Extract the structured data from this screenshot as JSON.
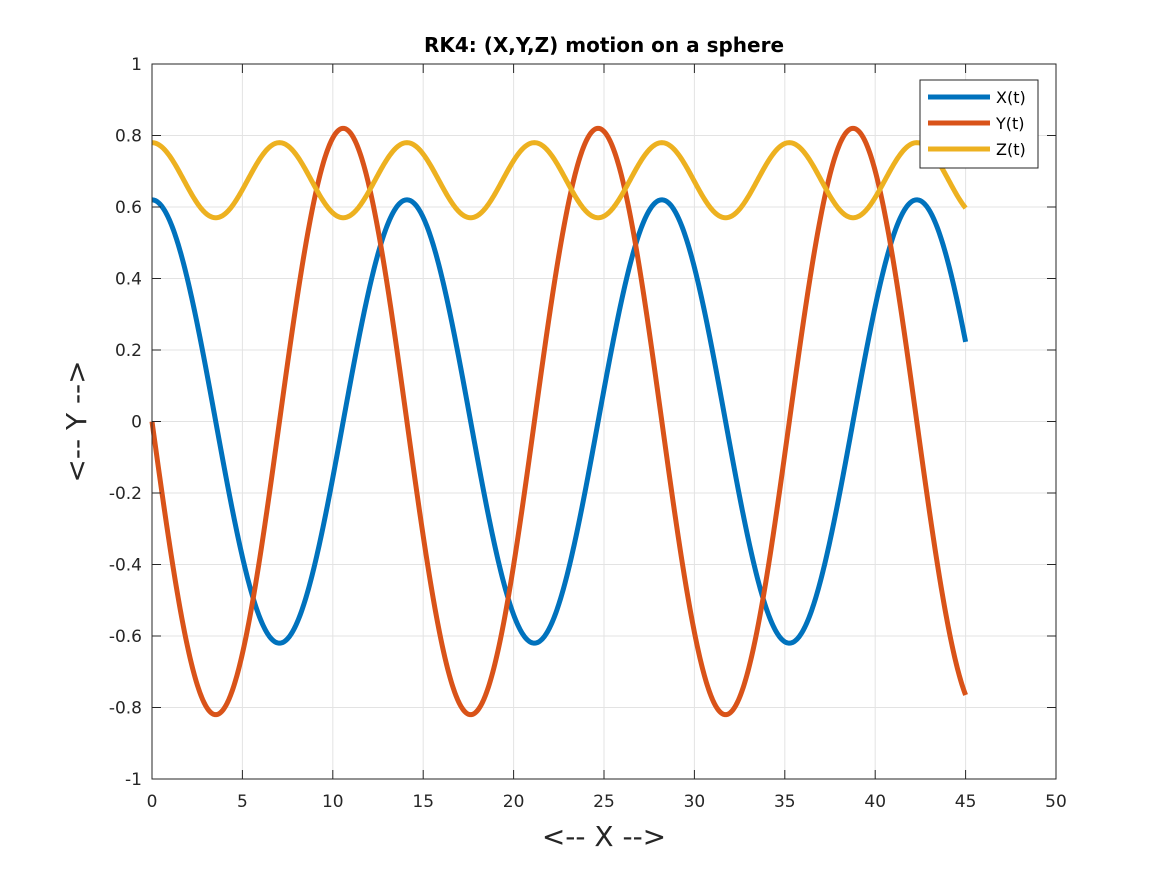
{
  "chart_data": {
    "type": "line",
    "title": "RK4: (X,Y,Z) motion on a sphere",
    "xlabel": "<-- X -->",
    "ylabel": "<-- Y -->",
    "xlim": [
      0,
      50
    ],
    "ylim": [
      -1,
      1
    ],
    "xticks": [
      0,
      5,
      10,
      15,
      20,
      25,
      30,
      35,
      40,
      45,
      50
    ],
    "yticks": [
      -1,
      -0.8,
      -0.6,
      -0.4,
      -0.2,
      0,
      0.2,
      0.4,
      0.6,
      0.8,
      1
    ],
    "xtick_labels": [
      "0",
      "5",
      "10",
      "15",
      "20",
      "25",
      "30",
      "35",
      "40",
      "45",
      "50"
    ],
    "ytick_labels": [
      "-1",
      "-0.8",
      "-0.6",
      "-0.4",
      "-0.2",
      "0",
      "0.2",
      "0.4",
      "0.6",
      "0.8",
      "1"
    ],
    "grid": true,
    "legend_position": "top-right",
    "t_range": [
      0,
      45
    ],
    "series": [
      {
        "name": "X(t)",
        "color": "#0072BD",
        "form": "cos",
        "amplitude": 0.62,
        "period": 14.1,
        "offset": 0
      },
      {
        "name": "Y(t)",
        "color": "#D95319",
        "form": "neg-sin",
        "amplitude": 0.82,
        "period": 14.1,
        "offset": 0
      },
      {
        "name": "Z(t)",
        "color": "#EDB120",
        "form": "cos",
        "amplitude": 0.105,
        "period": 7.05,
        "offset": 0.675
      }
    ]
  }
}
